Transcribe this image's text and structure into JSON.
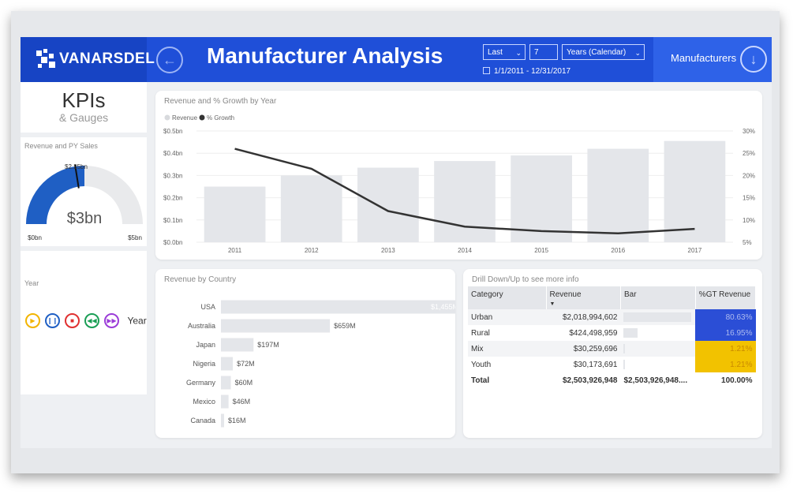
{
  "header": {
    "brand": "VANARSDEL",
    "title": "Manufacturer Analysis",
    "filter": {
      "period": "Last",
      "count": "7",
      "unit": "Years (Calendar)",
      "date_range": "1/1/2011 - 12/31/2017"
    },
    "nav_label": "Manufacturers",
    "colors": {
      "header": "#1f4fd8",
      "accent": "#2e62e8"
    }
  },
  "sidebar": {
    "kpi_title": "KPIs",
    "kpi_sub": "& Gauges",
    "gauge": {
      "label": "Revenue and PY Sales",
      "value_label": "$3bn",
      "min_label": "$0bn",
      "max_label": "$5bn",
      "target_label": "$2.25bn",
      "value": 2.5,
      "min": 0,
      "max": 5,
      "target": 2.25,
      "color": "#1f5fc4"
    },
    "year_label": "Year",
    "play_label": "Year"
  },
  "chart_data": [
    {
      "type": "bar",
      "title": "Revenue and % Growth by Year",
      "legend": [
        "Revenue",
        "% Growth"
      ],
      "legend_position": "top-left",
      "categories": [
        "2011",
        "2012",
        "2013",
        "2014",
        "2015",
        "2016",
        "2017"
      ],
      "series": [
        {
          "name": "Revenue",
          "type": "bar",
          "values": [
            0.25,
            0.3,
            0.335,
            0.365,
            0.39,
            0.42,
            0.455
          ],
          "color": "#e4e6ea"
        },
        {
          "name": "% Growth",
          "type": "line",
          "axis": "right",
          "values": [
            26,
            21.5,
            12,
            8.5,
            7.5,
            7,
            8
          ],
          "color": "#333333"
        }
      ],
      "y_ticks": [
        "$0.0bn",
        "$0.1bn",
        "$0.2bn",
        "$0.3bn",
        "$0.4bn",
        "$0.5bn"
      ],
      "ylim": [
        0,
        0.5
      ],
      "y2_ticks": [
        "5%",
        "10%",
        "15%",
        "20%",
        "25%",
        "30%"
      ],
      "y2lim": [
        5,
        30
      ],
      "grid": true
    },
    {
      "type": "bar",
      "orientation": "horizontal",
      "title": "Revenue by Country",
      "categories": [
        "USA",
        "Australia",
        "Japan",
        "Nigeria",
        "Germany",
        "Mexico",
        "Canada"
      ],
      "values": [
        1455,
        659,
        197,
        72,
        60,
        46,
        16
      ],
      "labels": [
        "$1,455M",
        "$659M",
        "$197M",
        "$72M",
        "$60M",
        "$46M",
        "$16M"
      ],
      "color": "#e4e6ea"
    }
  ],
  "drill_table": {
    "title": "Drill Down/Up to see more info",
    "columns": [
      "Category",
      "Revenue",
      "Bar",
      "%GT Revenue"
    ],
    "rows": [
      {
        "category": "Urban",
        "revenue": "$2,018,994,602",
        "share": 0.8063,
        "pct": "80.63%",
        "pct_color": "#2b4ed6",
        "pct_text": "#aebcf0"
      },
      {
        "category": "Rural",
        "revenue": "$424,498,959",
        "share": 0.1695,
        "pct": "16.95%",
        "pct_color": "#2b4ed6",
        "pct_text": "#aebcf0"
      },
      {
        "category": "Mix",
        "revenue": "$30,259,696",
        "share": 0.0121,
        "pct": "1.21%",
        "pct_color": "#f2c200",
        "pct_text": "#c98a00"
      },
      {
        "category": "Youth",
        "revenue": "$30,173,691",
        "share": 0.0121,
        "pct": "1.21%",
        "pct_color": "#f2c200",
        "pct_text": "#c98a00"
      }
    ],
    "total": {
      "category": "Total",
      "revenue": "$2,503,926,948",
      "bar": "$2,503,926,948....",
      "pct": "100.00%"
    }
  }
}
